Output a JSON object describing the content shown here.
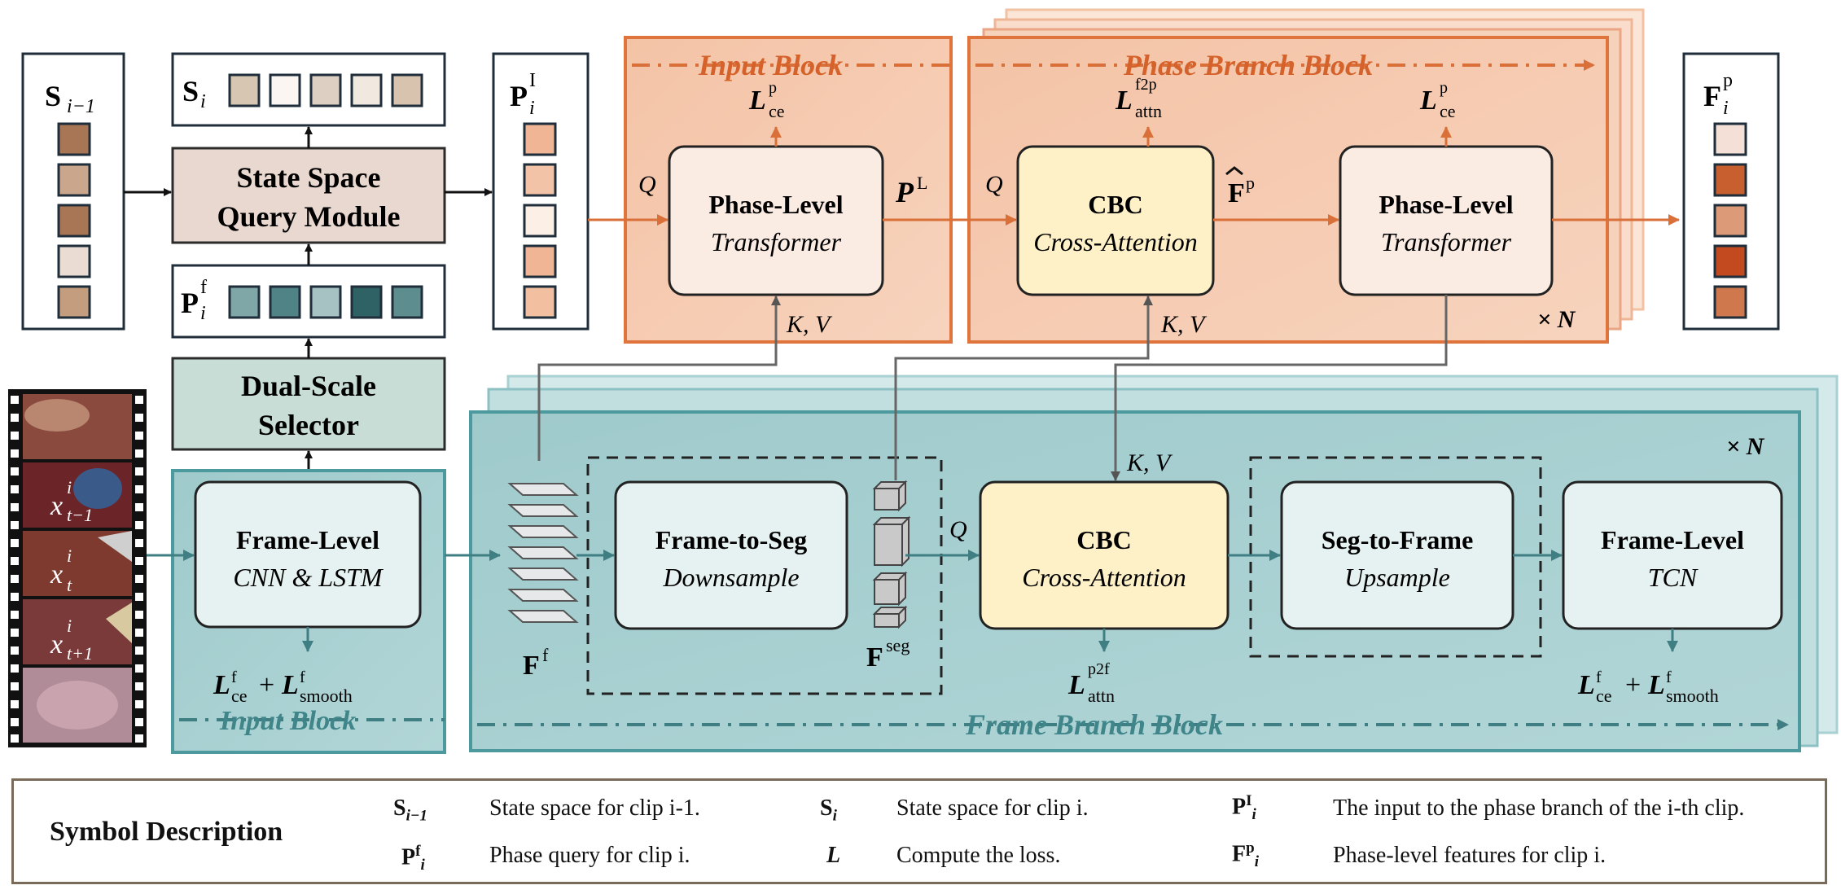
{
  "colors": {
    "phase_orange": "#d9703a",
    "phase_fill": "#f6cdb5",
    "phase_border": "#e0743d",
    "frame_teal": "#4c9a9e",
    "frame_fill": "#a9cfd0",
    "cbc_fill": "#fff1c7",
    "state_fill": "#ead9d0"
  },
  "left": {
    "s_prev_label": "S",
    "s_prev_sub": "i−1",
    "s_i_label": "S",
    "s_i_sub": "i",
    "state_space_line1": "State Space",
    "state_space_line2": "Query Module",
    "p_f_label": "P",
    "p_f_sub": "i",
    "p_f_sup": "f",
    "dual_line1": "Dual-Scale",
    "dual_line2": "Selector",
    "p_i_label": "P",
    "p_i_sub": "i",
    "p_i_sup": "I",
    "frame_level_title": "Frame-Level",
    "frame_level_sub": "CNN & LSTM",
    "loss_left": "L",
    "loss_left_sub1": "ce",
    "loss_left_sup1": "f",
    "loss_plus": "+",
    "loss_left_sub2": "smooth",
    "loss_left_sup2": "f",
    "input_block_bottom": "Input Block",
    "x_prev": "x",
    "x_prev_sup": "i",
    "x_prev_sub": "t−1",
    "x_cur": "x",
    "x_cur_sup": "i",
    "x_cur_sub": "t",
    "x_next": "x",
    "x_next_sup": "i",
    "x_next_sub": "t+1"
  },
  "phase": {
    "input_block_label": "Input Block",
    "phase_branch_label": "Phase Branch Block",
    "q": "Q",
    "kv": "K, V",
    "pl1_title": "Phase-Level",
    "pl1_sub": "Transformer",
    "loss_ce": "L",
    "loss_ce_sub": "ce",
    "loss_ce_sup": "p",
    "p_L": "P",
    "p_L_sup": "L",
    "cbc_title": "CBC",
    "cbc_sub": "Cross-Attention",
    "loss_attn": "L",
    "loss_attn_sub": "attn",
    "loss_attn_sup": "f2p",
    "f_hat": "F",
    "f_hat_sup": "p",
    "pl2_title": "Phase-Level",
    "pl2_sub": "Transformer",
    "times_n": "× N",
    "out_label": "F",
    "out_sub": "i",
    "out_sup": "p"
  },
  "frame": {
    "f_f": "F",
    "f_f_sup": "f",
    "f2s_title": "Frame-to-Seg",
    "f2s_sub": "Downsample",
    "f_seg": "F",
    "f_seg_sup": "seg",
    "q": "Q",
    "kv": "K, V",
    "cbc_title": "CBC",
    "cbc_sub": "Cross-Attention",
    "loss_attn": "L",
    "loss_attn_sub": "attn",
    "loss_attn_sup": "p2f",
    "s2f_title": "Seg-to-Frame",
    "s2f_sub": "Upsample",
    "fl_title": "Frame-Level",
    "fl_sub": "TCN",
    "loss_right": "L",
    "loss_right_sub1": "ce",
    "loss_right_sup1": "f",
    "loss_plus": "+",
    "loss_right_sub2": "smooth",
    "loss_right_sup2": "f",
    "times_n": "× N",
    "frame_branch_label": "Frame Branch Block"
  },
  "legend": {
    "title": "Symbol Description",
    "items": [
      {
        "sym": "S",
        "sub": "i−1",
        "sup": "",
        "desc": "State space for clip i-1."
      },
      {
        "sym": "S",
        "sub": "i",
        "sup": "",
        "desc": "State space for clip i."
      },
      {
        "sym": "P",
        "sub": "i",
        "sup": "I",
        "desc": "The input to the phase branch of the i-th clip."
      },
      {
        "sym": "P",
        "sub": "i",
        "sup": "f",
        "desc": "Phase query for clip i."
      },
      {
        "sym": "L",
        "sub": "",
        "sup": "",
        "desc": "Compute the loss."
      },
      {
        "sym": "F",
        "sub": "i",
        "sup": "p",
        "desc": "Phase-level features for clip i."
      }
    ]
  }
}
